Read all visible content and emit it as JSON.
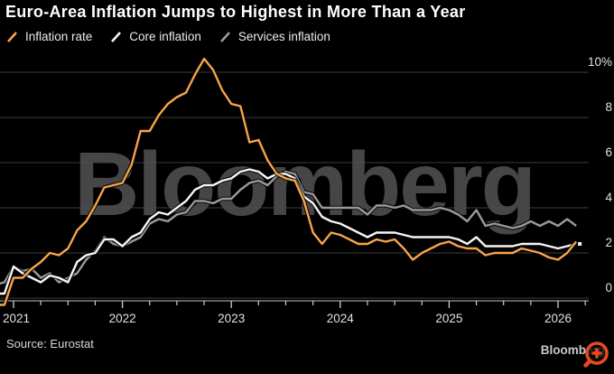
{
  "header": {
    "title": "Euro-Area Inflation Jumps to Highest in More Than a Year"
  },
  "legend": {
    "items": [
      {
        "label": "Inflation rate",
        "color": "#f7a44a"
      },
      {
        "label": "Core inflation",
        "color": "#f5f5f5"
      },
      {
        "label": "Services inflation",
        "color": "#9a9a9a"
      }
    ]
  },
  "chart_data": {
    "type": "line",
    "title": "Euro-Area Inflation Jumps to Highest in More Than a Year",
    "x_unit": "month",
    "x_start": "2020-11",
    "x_end": "2026-03",
    "x_tick_years": [
      "2021",
      "2022",
      "2023",
      "2024",
      "2025",
      "2026"
    ],
    "y_ticks": [
      {
        "value": 0,
        "label": "0"
      },
      {
        "value": 2,
        "label": "2"
      },
      {
        "value": 4,
        "label": "4"
      },
      {
        "value": 6,
        "label": "6"
      },
      {
        "value": 8,
        "label": "8"
      },
      {
        "value": 10,
        "label": "10%"
      }
    ],
    "ylim": [
      -0.6,
      11.2
    ],
    "grid": "horizontal",
    "legend_position": "top-left",
    "watermark": "Bloomberg",
    "series": [
      {
        "name": "Inflation rate",
        "color": "#f7a44a",
        "start_offset_months": -2,
        "end_marker": false,
        "values": [
          -0.3,
          -0.3,
          0.9,
          0.9,
          1.3,
          1.6,
          2.0,
          1.9,
          2.2,
          3.0,
          3.4,
          4.1,
          4.9,
          5.0,
          5.1,
          5.9,
          7.4,
          7.4,
          8.1,
          8.6,
          8.9,
          9.1,
          9.9,
          10.6,
          10.1,
          9.2,
          8.6,
          8.5,
          6.9,
          7.0,
          6.1,
          5.5,
          5.3,
          5.2,
          4.3,
          2.9,
          2.4,
          2.9,
          2.8,
          2.6,
          2.4,
          2.4,
          2.6,
          2.5,
          2.6,
          2.2,
          1.7,
          2.0,
          2.2,
          2.4,
          2.5,
          2.3,
          2.2,
          2.2,
          1.9,
          2.0,
          2.0,
          2.0,
          2.2,
          2.1,
          2.0,
          1.8,
          1.7,
          2.0,
          2.5
        ]
      },
      {
        "name": "Core inflation",
        "color": "#f5f5f5",
        "start_offset_months": -2,
        "end_marker": true,
        "values": [
          0.2,
          0.2,
          1.4,
          1.1,
          0.9,
          0.7,
          1.0,
          0.9,
          0.7,
          1.6,
          1.9,
          2.0,
          2.6,
          2.6,
          2.3,
          2.7,
          2.9,
          3.5,
          3.8,
          3.7,
          4.0,
          4.3,
          4.8,
          5.0,
          5.0,
          5.2,
          5.3,
          5.6,
          5.7,
          5.6,
          5.3,
          5.5,
          5.5,
          5.3,
          4.5,
          4.2,
          3.6,
          3.4,
          3.3,
          3.1,
          2.9,
          2.7,
          2.9,
          2.9,
          2.9,
          2.8,
          2.7,
          2.7,
          2.7,
          2.7,
          2.7,
          2.6,
          2.4,
          2.7,
          2.3,
          2.3,
          2.3,
          2.3,
          2.4,
          2.4,
          2.4,
          2.3,
          2.2,
          2.3,
          2.4
        ]
      },
      {
        "name": "Services inflation",
        "color": "#9a9a9a",
        "start_offset_months": -2,
        "end_marker": false,
        "values": [
          0.6,
          0.7,
          1.4,
          1.2,
          1.3,
          0.9,
          1.1,
          0.7,
          0.9,
          1.1,
          1.7,
          2.1,
          2.7,
          2.4,
          2.3,
          2.5,
          2.7,
          3.3,
          3.5,
          3.4,
          3.7,
          3.8,
          4.3,
          4.3,
          4.2,
          4.4,
          4.4,
          4.8,
          5.1,
          5.2,
          5.0,
          5.4,
          5.6,
          5.5,
          4.7,
          4.6,
          4.0,
          4.0,
          4.0,
          4.0,
          4.0,
          3.7,
          4.1,
          4.1,
          4.0,
          4.1,
          3.9,
          3.9,
          3.9,
          4.0,
          3.9,
          3.7,
          3.4,
          3.9,
          3.2,
          3.3,
          3.2,
          3.1,
          3.2,
          3.4,
          3.2,
          3.4,
          3.2,
          3.5,
          3.2
        ]
      }
    ]
  },
  "footer": {
    "source": "Source: Eurostat",
    "logo": "Bloomberg"
  },
  "colors": {
    "background": "#000000",
    "grid": "#3d3d3d",
    "axis": "#9b9b9b",
    "tick": "#cfcfcf",
    "label": "#e2e2e2",
    "watermark": "#4e4e4e",
    "accent_icon": "#e8491f"
  }
}
